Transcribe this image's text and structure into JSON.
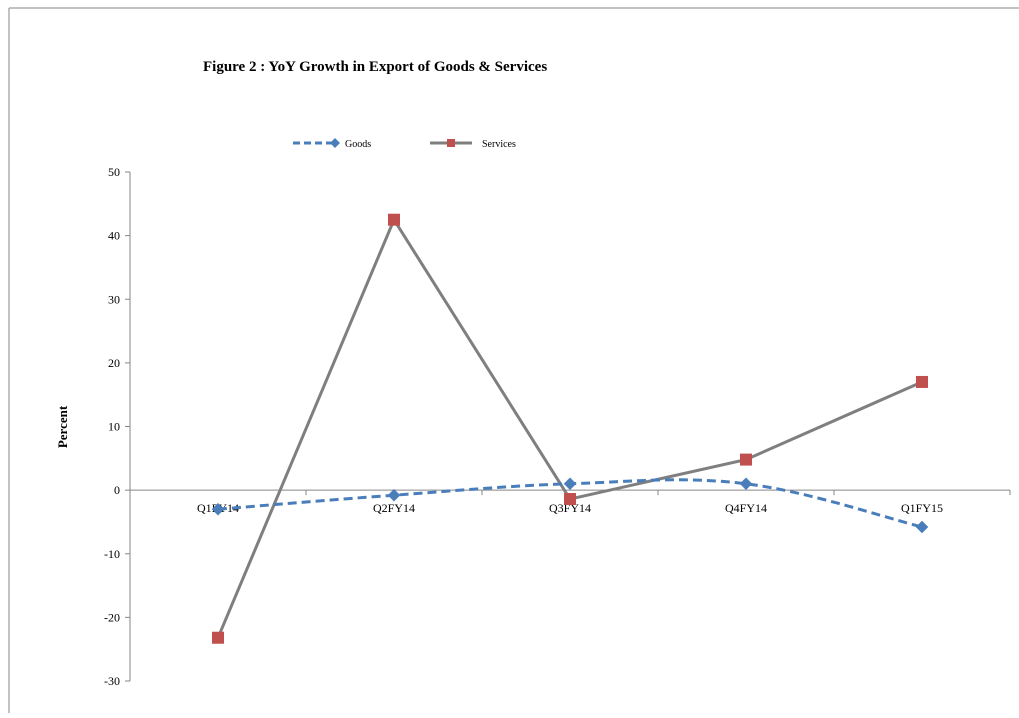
{
  "chart_data": {
    "type": "line",
    "title": "Figure 2 : YoY Growth in Export  of Goods & Services",
    "xlabel": "",
    "ylabel": "Percent",
    "categories": [
      "Q1FY14",
      "Q2FY14",
      "Q3FY14",
      "Q4FY14",
      "Q1FY15"
    ],
    "series": [
      {
        "name": "Goods",
        "values": [
          -3.0,
          -0.8,
          1.0,
          1.0,
          -5.8
        ],
        "color": "#4a7ebb",
        "style": "dashed",
        "marker": "diamond"
      },
      {
        "name": "Services",
        "values": [
          -23.2,
          42.5,
          -1.4,
          4.8,
          17.0
        ],
        "color": "#7f7f7f",
        "style": "solid",
        "marker": "square",
        "marker_color": "#c0504d"
      }
    ],
    "ylim": [
      -30,
      50
    ],
    "yticks": [
      "50",
      "40",
      "30",
      "20",
      "10",
      "0",
      "-10",
      "-20",
      "-30"
    ],
    "grid": false,
    "legend_position": "top"
  }
}
